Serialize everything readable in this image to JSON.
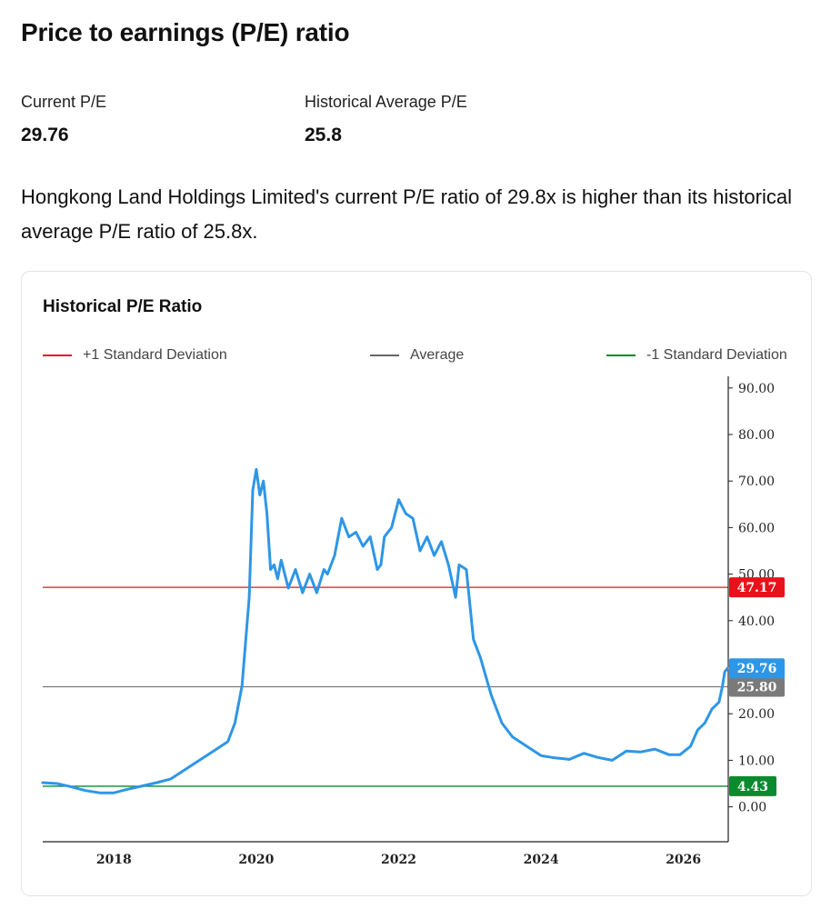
{
  "header": {
    "title": "Price to earnings (P/E) ratio",
    "current_label": "Current P/E",
    "current_value": "29.76",
    "historical_label": "Historical Average P/E",
    "historical_value": "25.8",
    "summary": "Hongkong Land Holdings Limited's current P/E ratio of 29.8x is higher than its historical average P/E ratio of 25.8x."
  },
  "chart_data": {
    "type": "line",
    "title": "Historical P/E Ratio",
    "xlabel": "",
    "ylabel": "",
    "xlim": [
      2017.0,
      2026.63
    ],
    "ylim": [
      -7.5,
      92.5
    ],
    "x_ticks": [
      "2018",
      "2020",
      "2022",
      "2024",
      "2026"
    ],
    "y_ticks": [
      "90.00",
      "80.00",
      "70.00",
      "60.00",
      "50.00",
      "40.00",
      "20.00",
      "10.00",
      "0.00"
    ],
    "legend": [
      {
        "label": "+1 Standard Deviation",
        "color": "#e8121c"
      },
      {
        "label": "Average",
        "color": "#666666"
      },
      {
        "label": "-1 Standard Deviation",
        "color": "#0a8a2e"
      }
    ],
    "legend_position": "top",
    "reference_lines": [
      {
        "name": "+1 Standard Deviation",
        "value": 47.17,
        "label": "47.17",
        "color": "#e8121c"
      },
      {
        "name": "Average",
        "value": 25.8,
        "label": "25.80",
        "color": "#7a7a7a"
      },
      {
        "name": "-1 Standard Deviation",
        "value": 4.43,
        "label": "4.43",
        "color": "#0a8a2e"
      }
    ],
    "current": {
      "value": 29.76,
      "label": "29.76",
      "color": "#2e96e6"
    },
    "series": [
      {
        "line_color": "#2e96e6",
        "x": [
          2017.0,
          2017.2,
          2017.4,
          2017.6,
          2017.8,
          2018.0,
          2018.2,
          2018.4,
          2018.6,
          2018.8,
          2019.0,
          2019.2,
          2019.4,
          2019.6,
          2019.7,
          2019.8,
          2019.9,
          2019.95,
          2020.0,
          2020.05,
          2020.1,
          2020.15,
          2020.2,
          2020.25,
          2020.3,
          2020.35,
          2020.45,
          2020.55,
          2020.65,
          2020.75,
          2020.85,
          2020.95,
          2021.0,
          2021.1,
          2021.2,
          2021.3,
          2021.4,
          2021.5,
          2021.6,
          2021.7,
          2021.75,
          2021.8,
          2021.9,
          2022.0,
          2022.1,
          2022.2,
          2022.3,
          2022.4,
          2022.5,
          2022.6,
          2022.7,
          2022.8,
          2022.85,
          2022.95,
          2023.05,
          2023.15,
          2023.3,
          2023.45,
          2023.6,
          2023.8,
          2024.0,
          2024.2,
          2024.4,
          2024.6,
          2024.8,
          2025.0,
          2025.2,
          2025.4,
          2025.6,
          2025.8,
          2025.95,
          2026.1,
          2026.2,
          2026.3,
          2026.4,
          2026.5,
          2026.55,
          2026.58,
          2026.62
        ],
        "values": [
          5.2,
          5.0,
          4.3,
          3.5,
          3.0,
          3.0,
          3.8,
          4.5,
          5.2,
          6.0,
          8.0,
          10.0,
          12.0,
          14.0,
          18.0,
          26.0,
          45.0,
          68.0,
          72.5,
          67.0,
          70.0,
          63.0,
          51.0,
          52.0,
          49.0,
          53.0,
          47.0,
          51.0,
          46.0,
          50.0,
          46.0,
          51.0,
          50.0,
          54.0,
          62.0,
          58.0,
          59.0,
          56.0,
          58.0,
          51.0,
          52.0,
          58.0,
          60.0,
          66.0,
          63.0,
          62.0,
          55.0,
          58.0,
          54.0,
          57.0,
          52.0,
          45.0,
          52.0,
          51.0,
          36.0,
          32.0,
          24.0,
          18.0,
          15.0,
          13.0,
          11.0,
          10.5,
          10.2,
          11.5,
          10.6,
          10.0,
          12.0,
          11.8,
          12.4,
          11.2,
          11.2,
          13.0,
          16.5,
          18.0,
          21.0,
          22.5,
          26.0,
          29.0,
          29.76
        ]
      }
    ]
  }
}
